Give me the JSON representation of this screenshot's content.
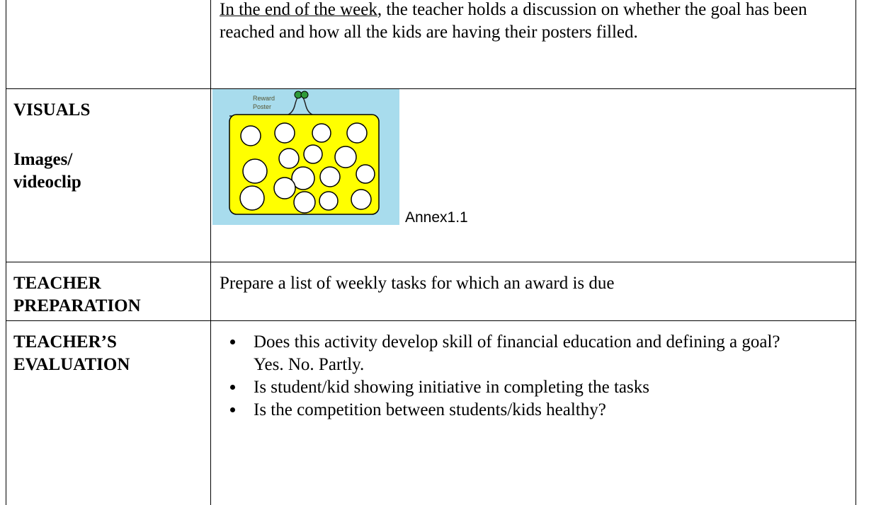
{
  "table": {
    "rows": [
      {
        "content": [
          "In the end of the week",
          ", the teacher holds a discussion on whether the goal has been reached and how all the kids are having their posters filled."
        ]
      },
      {
        "label": [
          "VISUALS",
          "Images/ videoclip"
        ],
        "image_text": [
          "Reward",
          "Poster"
        ],
        "caption": "Annex1.1"
      },
      {
        "label": "TEACHER PREPARATION",
        "content": "Prepare a list of weekly tasks for which an award is due"
      },
      {
        "label": "TEACHER’S EVALUATION",
        "bullets": [
          "Does this activity develop skill of financial education and defining a goal? Yes. No. Partly.",
          "Is student/kid showing initiative in completing the tasks",
          "Is the competition between students/kids healthy?"
        ]
      }
    ]
  }
}
